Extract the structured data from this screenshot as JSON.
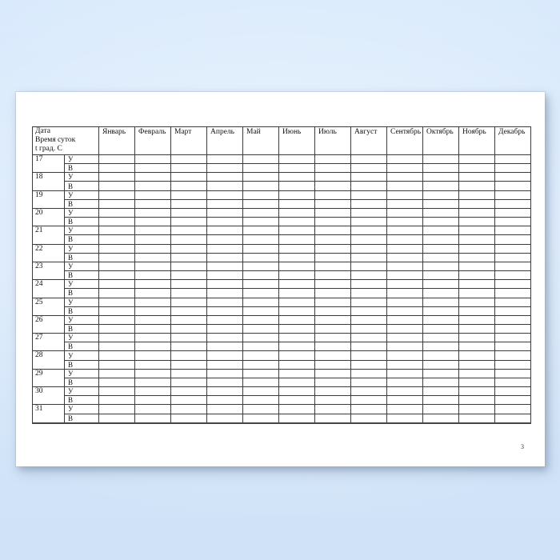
{
  "document": {
    "page_number": "3",
    "table": {
      "corner_header_lines": [
        "Дата",
        "Время суток",
        "t град. С"
      ],
      "months": [
        "Январь",
        "Февраль",
        "Март",
        "Апрель",
        "Май",
        "Июнь",
        "Июль",
        "Август",
        "Сентябрь",
        "Октябрь",
        "Ноябрь",
        "Декабрь"
      ],
      "days": [
        "17",
        "18",
        "19",
        "20",
        "21",
        "22",
        "23",
        "24",
        "25",
        "26",
        "27",
        "28",
        "29",
        "30",
        "31"
      ],
      "time_of_day_labels": [
        "У",
        "В"
      ]
    }
  },
  "colors": {
    "background_top": "#d9eafc",
    "background_bottom": "#cfe2f7",
    "page": "#ffffff",
    "table_border": "#3b3b3b",
    "text": "#111111"
  }
}
